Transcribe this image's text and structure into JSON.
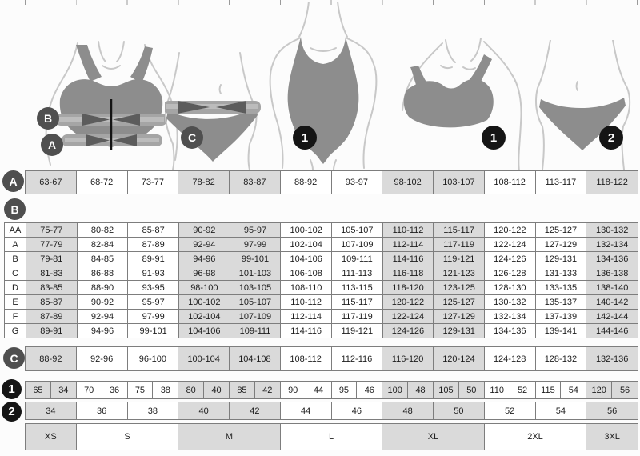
{
  "colors": {
    "background": "#fcfcfc",
    "cell_gray": "#dadada",
    "cell_white": "#ffffff",
    "grid_border": "#7d7d7d",
    "letter_circle": "#4f4f4f",
    "number_circle": "#151515",
    "garment_gray": "#8d8d8d",
    "body_outline": "#c8c8c8",
    "measure_band": "#a5a5a5",
    "measure_arrow": "#5c5c5c"
  },
  "rail": {
    "a": "A",
    "b": "B",
    "c": "C",
    "n1": "1",
    "n2": "2"
  },
  "figures": {
    "bra_measure": {
      "label_b": "B",
      "label_a": "A"
    },
    "panty_measure": {
      "label": "C"
    },
    "swimsuit": {
      "label": "1"
    },
    "bralette": {
      "label": "1"
    },
    "panty": {
      "label": "2"
    }
  },
  "chart_data": [
    {
      "type": "table",
      "name": "A",
      "description": "underbust circumference ranges (cm)",
      "rows": [
        [
          "63-67",
          "68-72",
          "73-77",
          "78-82",
          "83-87",
          "88-92",
          "93-97",
          "98-102",
          "103-107",
          "108-112",
          "113-117",
          "118-122"
        ]
      ]
    },
    {
      "type": "table",
      "name": "B",
      "description": "bust circumference ranges (cm) per cup",
      "row_labels": [
        "AA",
        "A",
        "B",
        "C",
        "D",
        "E",
        "F",
        "G"
      ],
      "rows": [
        [
          "75-77",
          "80-82",
          "85-87",
          "90-92",
          "95-97",
          "100-102",
          "105-107",
          "110-112",
          "115-117",
          "120-122",
          "125-127",
          "130-132"
        ],
        [
          "77-79",
          "82-84",
          "87-89",
          "92-94",
          "97-99",
          "102-104",
          "107-109",
          "112-114",
          "117-119",
          "122-124",
          "127-129",
          "132-134"
        ],
        [
          "79-81",
          "84-85",
          "89-91",
          "94-96",
          "99-101",
          "104-106",
          "109-111",
          "114-116",
          "119-121",
          "124-126",
          "129-131",
          "134-136"
        ],
        [
          "81-83",
          "86-88",
          "91-93",
          "96-98",
          "101-103",
          "106-108",
          "111-113",
          "116-118",
          "121-123",
          "126-128",
          "131-133",
          "136-138"
        ],
        [
          "83-85",
          "88-90",
          "93-95",
          "98-100",
          "103-105",
          "108-110",
          "113-115",
          "118-120",
          "123-125",
          "128-130",
          "133-135",
          "138-140"
        ],
        [
          "85-87",
          "90-92",
          "95-97",
          "100-102",
          "105-107",
          "110-112",
          "115-117",
          "120-122",
          "125-127",
          "130-132",
          "135-137",
          "140-142"
        ],
        [
          "87-89",
          "92-94",
          "97-99",
          "102-104",
          "107-109",
          "112-114",
          "117-119",
          "122-124",
          "127-129",
          "132-134",
          "137-139",
          "142-144"
        ],
        [
          "89-91",
          "94-96",
          "99-101",
          "104-106",
          "109-111",
          "114-116",
          "119-121",
          "124-126",
          "129-131",
          "134-136",
          "139-141",
          "144-146"
        ]
      ]
    },
    {
      "type": "table",
      "name": "C",
      "description": "hip circumference ranges (cm)",
      "rows": [
        [
          "88-92",
          "92-96",
          "96-100",
          "100-104",
          "104-108",
          "108-112",
          "112-116",
          "116-120",
          "120-124",
          "124-128",
          "128-132",
          "132-136"
        ]
      ]
    },
    {
      "type": "table",
      "name": "1",
      "description": "bra band / dress size pairs",
      "rows": [
        [
          "65",
          "34",
          "70",
          "36",
          "75",
          "38",
          "80",
          "40",
          "85",
          "42",
          "90",
          "44",
          "95",
          "46",
          "100",
          "48",
          "105",
          "50",
          "110",
          "52",
          "115",
          "54",
          "120",
          "56"
        ]
      ]
    },
    {
      "type": "table",
      "name": "2",
      "description": "brief size",
      "rows": [
        [
          "34",
          "36",
          "38",
          "40",
          "42",
          "44",
          "46",
          "48",
          "50",
          "52",
          "54",
          "56"
        ]
      ]
    },
    {
      "type": "table",
      "name": "sizes",
      "description": "international size spanning columns",
      "rows": [
        [
          "XS",
          "S",
          "M",
          "L",
          "XL",
          "2XL",
          "3XL"
        ]
      ],
      "spans": [
        1,
        2,
        2,
        2,
        2,
        2,
        1
      ]
    }
  ]
}
